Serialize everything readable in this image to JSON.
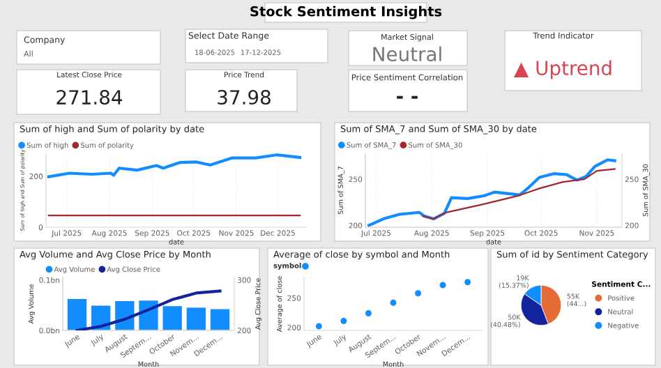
{
  "chart_data": [
    {
      "type": "other",
      "title": "Stock Sentiment Insights",
      "annotations": [
        "Company",
        "All",
        "Select Date Range",
        "18-06-2025",
        "17-12-2025",
        "Latest Close Price",
        "271.84",
        "Price Trend",
        "37.98",
        "Market Signal",
        "Neutral",
        "Price Sentiment Correlation",
        "- -",
        "Trend Indicator",
        "▲ Uptrend"
      ]
    },
    {
      "type": "line",
      "title": "Sum of high and Sum of polarity by date",
      "xlabel": "date",
      "ylabel": "Sum of high and Sum of polarity",
      "legend": "top left",
      "grid": "x",
      "xlim": [
        "2025-06-16",
        "2025-12-22"
      ],
      "xticks": [
        {
          "value": "2025-07-01",
          "label": "Jul 2025"
        },
        {
          "value": "2025-08-01",
          "label": "Aug 2025"
        },
        {
          "value": "2025-09-01",
          "label": "Sep 2025"
        },
        {
          "value": "2025-10-01",
          "label": "Oct 2025"
        },
        {
          "value": "2025-11-01",
          "label": "Nov 2025"
        },
        {
          "value": "2025-12-01",
          "label": "Dec 2025"
        }
      ],
      "ylim": [
        0,
        290
      ],
      "yticks": [
        0,
        200
      ],
      "series": [
        {
          "name": "Sum of high",
          "color": "#118dff",
          "x": [
            "2025-06-18",
            "2025-07-03",
            "2025-07-19",
            "2025-08-02",
            "2025-08-04",
            "2025-08-08",
            "2025-08-21",
            "2025-09-04",
            "2025-09-09",
            "2025-09-21",
            "2025-10-03",
            "2025-10-13",
            "2025-10-29",
            "2025-11-15",
            "2025-11-30",
            "2025-12-17"
          ],
          "values": [
            198,
            212,
            208,
            212,
            204,
            232,
            224,
            242,
            232,
            254,
            256,
            244,
            272,
            272,
            284,
            274
          ]
        },
        {
          "name": "Sum of polarity",
          "color": "#a4262c",
          "x": [
            "2025-06-18",
            "2025-12-17"
          ],
          "values": [
            46,
            46
          ]
        }
      ]
    },
    {
      "type": "line",
      "title": "Sum of SMA_7 and Sum of SMA_30 by date",
      "xlabel": "date",
      "ylabel": "Sum of SMA_7",
      "y2label": "Sum of SMA_30",
      "legend": "top left",
      "grid": "x",
      "xlim": [
        "2025-06-25",
        "2025-11-15"
      ],
      "xticks": [
        {
          "value": "2025-07-01",
          "label": "Jul 2025"
        },
        {
          "value": "2025-08-01",
          "label": "Aug 2025"
        },
        {
          "value": "2025-09-01",
          "label": "Sep 2025"
        },
        {
          "value": "2025-10-01",
          "label": "Oct 2025"
        },
        {
          "value": "2025-11-01",
          "label": "Nov 2025"
        }
      ],
      "ylim": [
        198,
        278
      ],
      "yticks": [
        200,
        250
      ],
      "y2lim": [
        198,
        278
      ],
      "y2ticks": [
        200,
        250
      ],
      "series": [
        {
          "name": "Sum of SMA_7",
          "color": "#118dff",
          "x": [
            "2025-06-27",
            "2025-07-05",
            "2025-07-14",
            "2025-07-25",
            "2025-07-28",
            "2025-08-02",
            "2025-08-08",
            "2025-08-12",
            "2025-08-21",
            "2025-08-30",
            "2025-09-05",
            "2025-09-19",
            "2025-09-24",
            "2025-09-30",
            "2025-10-08",
            "2025-10-15",
            "2025-10-21",
            "2025-10-26",
            "2025-10-31",
            "2025-11-07",
            "2025-11-11"
          ],
          "values": [
            200,
            207,
            212,
            214,
            210,
            207,
            213,
            230,
            229,
            232,
            236,
            233,
            241,
            252,
            256,
            255,
            249,
            253,
            264,
            271,
            270
          ]
        },
        {
          "name": "Sum of SMA_30",
          "color": "#a4262c",
          "axis": "y2",
          "x": [
            "2025-07-27",
            "2025-08-02",
            "2025-08-09",
            "2025-08-30",
            "2025-09-18",
            "2025-09-30",
            "2025-10-13",
            "2025-10-25",
            "2025-11-01",
            "2025-11-11"
          ],
          "values": [
            210,
            207,
            214,
            223,
            232,
            240,
            247,
            250,
            259,
            261
          ]
        }
      ]
    },
    {
      "type": "bar",
      "title": "Avg Volume and Avg Close Price by Month",
      "xlabel": "Month",
      "ylabel": "Avg Volume",
      "y2label": "Avg Close Price",
      "legend": "top left",
      "categories": [
        "June",
        "July",
        "August",
        "Septem...",
        "October",
        "Novem...",
        "Decem..."
      ],
      "ylim": [
        0,
        0.105
      ],
      "yticks": [
        {
          "value": 0,
          "label": "0.0bn"
        },
        {
          "value": 0.1,
          "label": "0.1bn"
        }
      ],
      "y2lim": [
        200,
        305
      ],
      "y2ticks": [
        200,
        300
      ],
      "series": [
        {
          "name": "Avg Volume",
          "color": "#118dff",
          "type": "bar",
          "values": [
            0.062,
            0.049,
            0.058,
            0.059,
            0.048,
            0.045,
            0.042
          ]
        },
        {
          "name": "Avg Close Price",
          "color": "#12239e",
          "type": "line",
          "axis": "y2",
          "values": [
            200,
            208,
            222,
            241,
            261,
            274,
            278
          ]
        }
      ]
    },
    {
      "type": "scatter",
      "title": "Average of close by symbol and Month",
      "xlabel": "Month",
      "ylabel": "Average of close",
      "legend_title": "symbol",
      "categories": [
        "June",
        "July",
        "August",
        "Septem...",
        "October",
        "Novem...",
        "Decem..."
      ],
      "ylim": [
        195,
        285
      ],
      "yticks": [
        200,
        250
      ],
      "series": [
        {
          "color": "#118dff",
          "values": [
            202,
            211,
            224,
            242,
            258,
            272,
            277
          ]
        }
      ]
    },
    {
      "type": "pie",
      "title": "Sum of id by Sentiment Category",
      "legend_title": "Sentiment C...",
      "legend": "right",
      "categories": [
        "Positive",
        "Neutral",
        "Negative"
      ],
      "values": [
        44.15,
        40.48,
        15.37
      ],
      "colors": [
        "#e66c37",
        "#12239e",
        "#118dff"
      ],
      "value_labels": [
        "55K (44...)",
        "50K (40.48%)",
        "19K (15.37%)"
      ]
    }
  ]
}
